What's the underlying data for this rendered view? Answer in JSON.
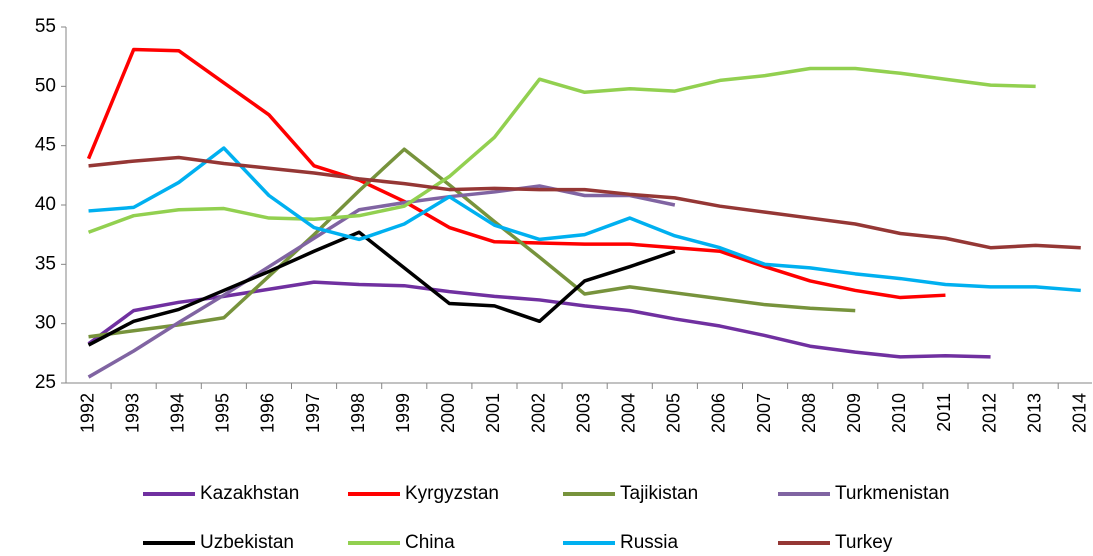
{
  "chart_data": {
    "type": "line",
    "categories": [
      "1992",
      "1993",
      "1994",
      "1995",
      "1996",
      "1997",
      "1998",
      "1999",
      "2000",
      "2001",
      "2002",
      "2003",
      "2004",
      "2005",
      "2006",
      "2007",
      "2008",
      "2009",
      "2010",
      "2011",
      "2012",
      "2013",
      "2014"
    ],
    "ylim": [
      25,
      55
    ],
    "yticks": [
      25,
      30,
      35,
      40,
      45,
      50,
      55
    ],
    "grid": false,
    "legend": "bottom",
    "series": [
      {
        "name": "Kazakhstan",
        "color": "#7030a0",
        "values": [
          28.3,
          31.1,
          31.8,
          32.3,
          32.9,
          33.5,
          33.3,
          33.2,
          32.7,
          32.3,
          32.0,
          31.5,
          31.1,
          30.4,
          29.8,
          29.0,
          28.1,
          27.6,
          27.2,
          27.3,
          27.2,
          null,
          null
        ]
      },
      {
        "name": "Kyrgyzstan",
        "color": "#ff0000",
        "values": [
          43.9,
          53.1,
          53.0,
          50.3,
          47.6,
          43.3,
          42.1,
          40.3,
          38.1,
          36.9,
          36.8,
          36.7,
          36.7,
          36.4,
          36.1,
          34.8,
          33.6,
          32.8,
          32.2,
          32.4,
          null,
          null,
          null
        ]
      },
      {
        "name": "Tajikistan",
        "color": "#77933c",
        "values": [
          28.9,
          29.4,
          29.9,
          30.5,
          34.0,
          37.5,
          41.2,
          44.7,
          41.7,
          38.6,
          35.6,
          32.5,
          33.1,
          32.6,
          32.1,
          31.6,
          31.3,
          31.1,
          null,
          null,
          null,
          null,
          null
        ]
      },
      {
        "name": "Turkmenistan",
        "color": "#8064a2",
        "values": [
          25.5,
          27.7,
          30.1,
          32.4,
          34.8,
          37.2,
          39.6,
          40.2,
          40.7,
          41.1,
          41.6,
          40.8,
          40.8,
          40.0,
          null,
          null,
          null,
          null,
          null,
          null,
          null,
          null,
          null
        ]
      },
      {
        "name": "Uzbekistan",
        "color": "#000000",
        "values": [
          28.2,
          30.2,
          31.2,
          32.8,
          34.4,
          36.1,
          37.7,
          34.7,
          31.7,
          31.5,
          30.2,
          33.6,
          34.8,
          36.1,
          null,
          null,
          null,
          null,
          null,
          null,
          null,
          null,
          null
        ]
      },
      {
        "name": "China",
        "color": "#92d050",
        "values": [
          37.7,
          39.1,
          39.6,
          39.7,
          38.9,
          38.8,
          39.1,
          39.9,
          42.4,
          45.7,
          50.6,
          49.5,
          49.8,
          49.6,
          50.5,
          50.9,
          51.5,
          51.5,
          51.1,
          50.6,
          50.1,
          50.0,
          null
        ]
      },
      {
        "name": "Russia",
        "color": "#00b0f0",
        "values": [
          39.5,
          39.8,
          41.9,
          44.8,
          40.8,
          38.1,
          37.1,
          38.4,
          40.7,
          38.3,
          37.1,
          37.5,
          38.9,
          37.4,
          36.4,
          35.0,
          34.7,
          34.2,
          33.8,
          33.3,
          33.1,
          33.1,
          32.8
        ]
      },
      {
        "name": "Turkey",
        "color": "#953735",
        "values": [
          43.3,
          43.7,
          44.0,
          43.5,
          43.1,
          42.7,
          42.2,
          41.8,
          41.3,
          41.4,
          41.3,
          41.3,
          40.9,
          40.6,
          39.9,
          39.4,
          38.9,
          38.4,
          37.6,
          37.2,
          36.4,
          36.6,
          36.4
        ]
      }
    ]
  }
}
